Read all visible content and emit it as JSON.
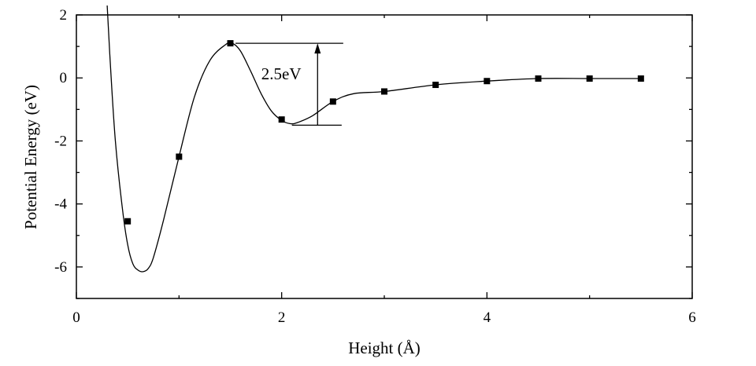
{
  "chart_data": {
    "type": "line",
    "title": "",
    "xlabel": "Height (Å)",
    "ylabel": "Potential Energy (eV)",
    "xlim": [
      0,
      6
    ],
    "ylim": [
      -7,
      2
    ],
    "xticks": [
      0,
      2,
      4,
      6
    ],
    "yticks": [
      2,
      0,
      -2,
      -4,
      -6
    ],
    "xtick_labels": [
      "0",
      "2",
      "4",
      "6"
    ],
    "ytick_labels": [
      "2",
      "0",
      "-2",
      "-4",
      "-6"
    ],
    "grid": false,
    "legend": "none",
    "series": [
      {
        "x": [
          0.5,
          1.0,
          1.5,
          2.0,
          2.5,
          3.0,
          3.5,
          4.0,
          4.5,
          5.0,
          5.5
        ],
        "y": [
          -4.55,
          -2.5,
          1.1,
          -1.32,
          -0.75,
          -0.43,
          -0.22,
          -0.1,
          -0.02,
          -0.02,
          -0.02
        ]
      }
    ],
    "fitted_curve": {
      "x": [
        0.3,
        0.33,
        0.38,
        0.45,
        0.5,
        0.55,
        0.6,
        0.65,
        0.7,
        0.75,
        0.85,
        1.0,
        1.15,
        1.3,
        1.45,
        1.52,
        1.6,
        1.7,
        1.8,
        1.9,
        2.0,
        2.08,
        2.15,
        2.3,
        2.5,
        2.7,
        3.0,
        3.5,
        4.0,
        4.5,
        5.0,
        5.5
      ],
      "y": [
        2.3,
        0.5,
        -2.0,
        -4.2,
        -5.3,
        -5.9,
        -6.1,
        -6.15,
        -6.05,
        -5.7,
        -4.5,
        -2.5,
        -0.6,
        0.55,
        1.05,
        1.1,
        0.85,
        0.2,
        -0.5,
        -1.05,
        -1.35,
        -1.45,
        -1.42,
        -1.2,
        -0.75,
        -0.5,
        -0.43,
        -0.22,
        -0.1,
        -0.02,
        -0.02,
        -0.02
      ]
    },
    "annotation": {
      "text": "2.5eV",
      "top_y": 1.1,
      "bottom_y": -1.5,
      "x_left_top": 1.55,
      "x_left_bottom": 2.1,
      "x_right": 2.6,
      "arrow_x": 2.35
    }
  }
}
